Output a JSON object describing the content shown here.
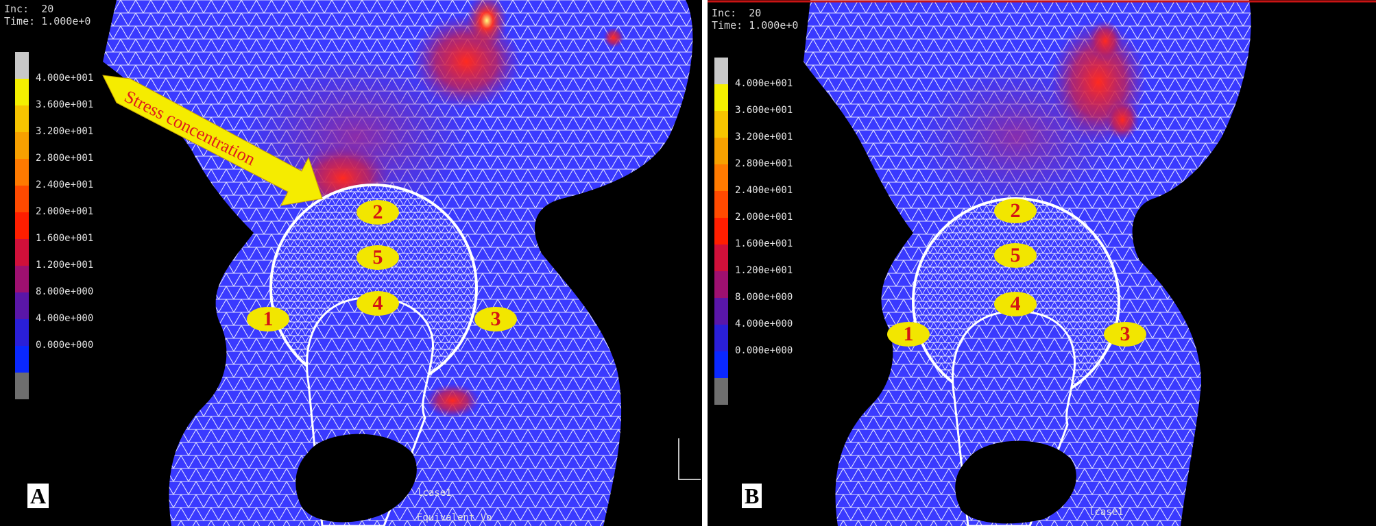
{
  "panel_a": {
    "letter": "A",
    "inc_label": "Inc:",
    "inc_value": "20",
    "time_label": "Time:",
    "time_value": "1.000e+0",
    "case_label": "lcase1",
    "bottom_label": "Equivalent Vo",
    "annotation": "Stress concentration",
    "markers": [
      "1",
      "2",
      "3",
      "4",
      "5"
    ]
  },
  "panel_b": {
    "letter": "B",
    "inc_label": "Inc:",
    "inc_value": "20",
    "time_label": "Time:",
    "time_value": "1.000e+0",
    "case_label": "lcase1",
    "markers": [
      "1",
      "2",
      "3",
      "4",
      "5"
    ]
  },
  "color_scale": {
    "labels": [
      "4.000e+001",
      "3.600e+001",
      "3.200e+001",
      "2.800e+001",
      "2.400e+001",
      "2.000e+001",
      "1.600e+001",
      "1.200e+001",
      "8.000e+000",
      "4.000e+000",
      "0.000e+000"
    ],
    "colors": [
      "#c8c8c8",
      "#f5f000",
      "#f7c400",
      "#f7a000",
      "#ff7a00",
      "#ff4a00",
      "#ff1e00",
      "#d0103a",
      "#9e1070",
      "#5a16a8",
      "#2a1fd8",
      "#0a28ff",
      "#6e6e6e"
    ]
  }
}
